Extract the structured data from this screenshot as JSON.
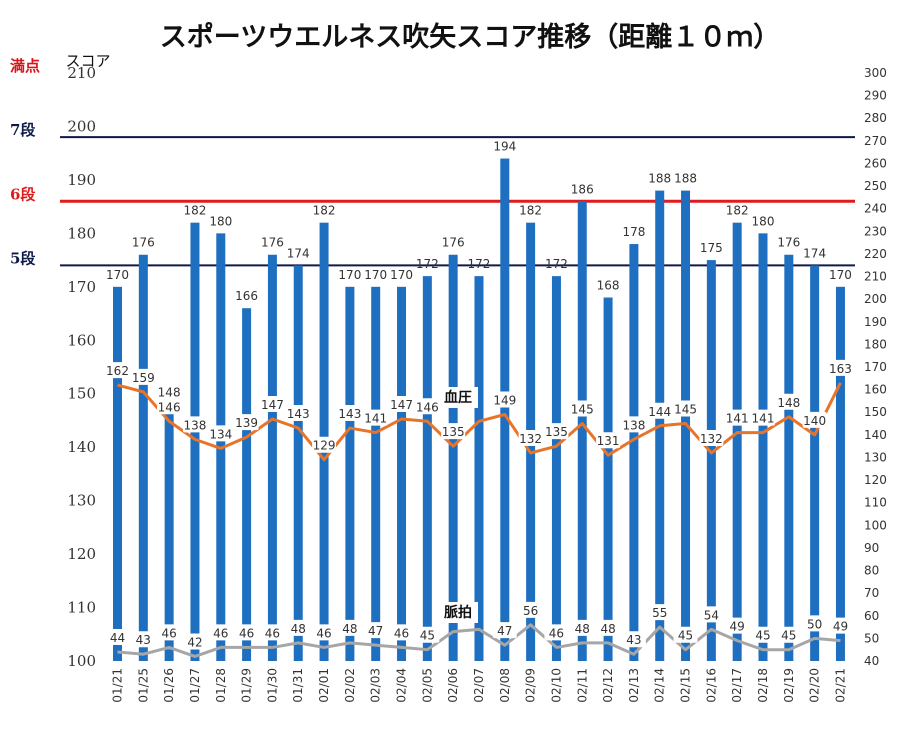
{
  "chart_data": {
    "type": "bar",
    "title": "スポーツウエルネス吹矢スコア推移（距離１０ｍ）",
    "ylabel": "スコア",
    "ylim": [
      100,
      210
    ],
    "y_ticks": [
      100,
      110,
      120,
      130,
      140,
      150,
      160,
      170,
      180,
      190,
      200,
      210
    ],
    "y2lim": [
      40,
      300
    ],
    "y2_ticks": [
      40,
      50,
      60,
      70,
      80,
      90,
      100,
      110,
      120,
      130,
      140,
      150,
      160,
      170,
      180,
      190,
      200,
      210,
      220,
      230,
      240,
      250,
      260,
      270,
      280,
      290,
      300
    ],
    "grid": false,
    "categories": [
      "01/21",
      "01/25",
      "01/26",
      "01/27",
      "01/28",
      "01/29",
      "01/30",
      "01/31",
      "02/01",
      "02/02",
      "02/03",
      "02/04",
      "02/05",
      "02/06",
      "02/07",
      "02/08",
      "02/09",
      "02/10",
      "02/11",
      "02/12",
      "02/13",
      "02/14",
      "02/15",
      "02/16",
      "02/17",
      "02/18",
      "02/19",
      "02/20",
      "02/21"
    ],
    "bar_color": "#1f6fc1",
    "series": [
      {
        "kind": "bar",
        "axis": "left",
        "values": [
          170,
          176,
          148,
          182,
          180,
          166,
          176,
          174,
          182,
          170,
          170,
          170,
          172,
          176,
          172,
          194,
          182,
          172,
          186,
          168,
          178,
          188,
          188,
          175,
          182,
          180,
          176,
          174,
          170
        ],
        "labels": [
          "170",
          "176",
          "148",
          "182",
          "180",
          "166",
          "176",
          "174",
          "182",
          "170",
          "170",
          "170",
          "172",
          "176",
          "172",
          "194",
          "182",
          "172",
          "186",
          "168",
          "178",
          "188",
          "188",
          "175",
          "182",
          "180",
          "176",
          "174",
          "170"
        ]
      },
      {
        "kind": "line",
        "axis": "right",
        "name": "血圧",
        "color": "#e8742a",
        "values": [
          162,
          159,
          146,
          138,
          134,
          139,
          147,
          143,
          129,
          143,
          141,
          147,
          146,
          135,
          146,
          149,
          132,
          135,
          145,
          131,
          138,
          144,
          145,
          132,
          141,
          141,
          148,
          140,
          163
        ],
        "labels": [
          "162",
          "159",
          "146",
          "138",
          "134",
          "139",
          "147",
          "143",
          "129",
          "143",
          "141",
          "147",
          "146",
          "135",
          "",
          "149",
          "132",
          "135",
          "145",
          "131",
          "138",
          "144",
          "145",
          "132",
          "141",
          "141",
          "148",
          "140",
          "163"
        ]
      },
      {
        "kind": "line",
        "axis": "right",
        "name": "脈拍",
        "color": "#a6a6a6",
        "values": [
          44,
          43,
          46,
          42,
          46,
          46,
          46,
          48,
          46,
          48,
          47,
          46,
          45,
          53,
          54,
          47,
          56,
          46,
          48,
          48,
          43,
          55,
          45,
          54,
          49,
          45,
          45,
          50,
          49
        ],
        "labels": [
          "44",
          "43",
          "46",
          "42",
          "46",
          "46",
          "46",
          "48",
          "46",
          "48",
          "47",
          "46",
          "45",
          "",
          "",
          "47",
          "56",
          "46",
          "48",
          "48",
          "43",
          "55",
          "45",
          "54",
          "49",
          "45",
          "45",
          "50",
          "49"
        ]
      }
    ],
    "reference_lines": [
      {
        "label": "満点",
        "value": 210,
        "color": "#d9141b",
        "line": false
      },
      {
        "label": "7段",
        "value": 198,
        "color": "#0d1a4a",
        "line": true
      },
      {
        "label": "6段",
        "value": 186,
        "color": "#e01b1b",
        "line": true
      },
      {
        "label": "5段",
        "value": 174,
        "color": "#0d1a4a",
        "line": true
      }
    ]
  }
}
